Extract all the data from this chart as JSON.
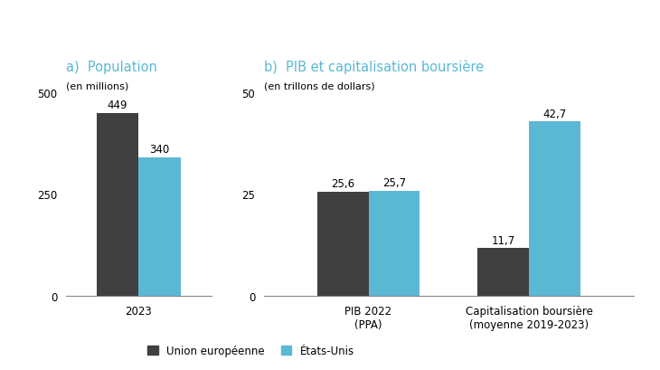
{
  "panel_a_title": "a)  Population",
  "panel_a_subtitle": "(en millions)",
  "panel_b_title": "b)  PIB et capitalisation boursière",
  "panel_b_subtitle": "(en trillons de dollars)",
  "panel_a": {
    "categories": [
      "2023"
    ],
    "eu_values": [
      449
    ],
    "us_values": [
      340
    ],
    "ylim": [
      0,
      500
    ],
    "yticks": [
      0,
      250,
      500
    ]
  },
  "panel_b": {
    "categories": [
      "PIB 2022\n(PPA)",
      "Capitalisation boursière\n(moyenne 2019-2023)"
    ],
    "eu_values": [
      25.6,
      11.7
    ],
    "us_values": [
      25.7,
      42.7
    ],
    "ylim": [
      0,
      50
    ],
    "yticks": [
      0,
      25,
      50
    ]
  },
  "color_eu": "#404040",
  "color_us": "#5bb8d4",
  "title_color": "#5bb8d4",
  "label_eu": "Union européenne",
  "label_us": "États-Unis",
  "bar_width": 0.32,
  "value_fontsize": 8.5,
  "axis_label_fontsize": 8.5,
  "subtitle_fontsize": 8,
  "panel_title_fontsize": 10.5,
  "legend_fontsize": 8.5,
  "background_color": "#ffffff"
}
